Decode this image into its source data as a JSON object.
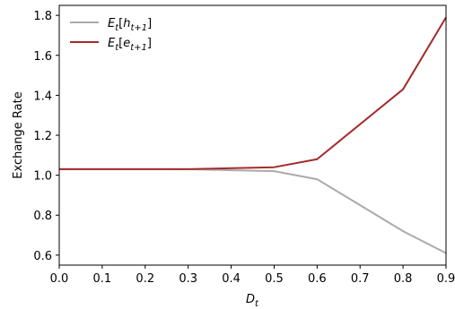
{
  "chart_data": {
    "type": "line",
    "xlabel": "D_t",
    "ylabel": "Exchange Rate",
    "xlim": [
      0.0,
      0.9
    ],
    "ylim": [
      0.55,
      1.85
    ],
    "grid": false,
    "legend_position": "top-left",
    "x_ticks": [
      "0.0",
      "0.1",
      "0.2",
      "0.3",
      "0.4",
      "0.5",
      "0.6",
      "0.7",
      "0.8",
      "0.9"
    ],
    "y_ticks": [
      "0.6",
      "0.8",
      "1.0",
      "1.2",
      "1.4",
      "1.6",
      "1.8"
    ],
    "x": [
      0.0,
      0.3,
      0.5,
      0.6,
      0.8,
      0.9
    ],
    "series": [
      {
        "name": "E_t[h_{t+1}]",
        "color": "#aaaaaa",
        "values": [
          1.03,
          1.03,
          1.02,
          0.98,
          0.72,
          0.61
        ]
      },
      {
        "name": "E_t[e_{t+1}]",
        "color": "#a52a2a",
        "values": [
          1.03,
          1.03,
          1.04,
          1.08,
          1.43,
          1.79
        ]
      }
    ]
  }
}
